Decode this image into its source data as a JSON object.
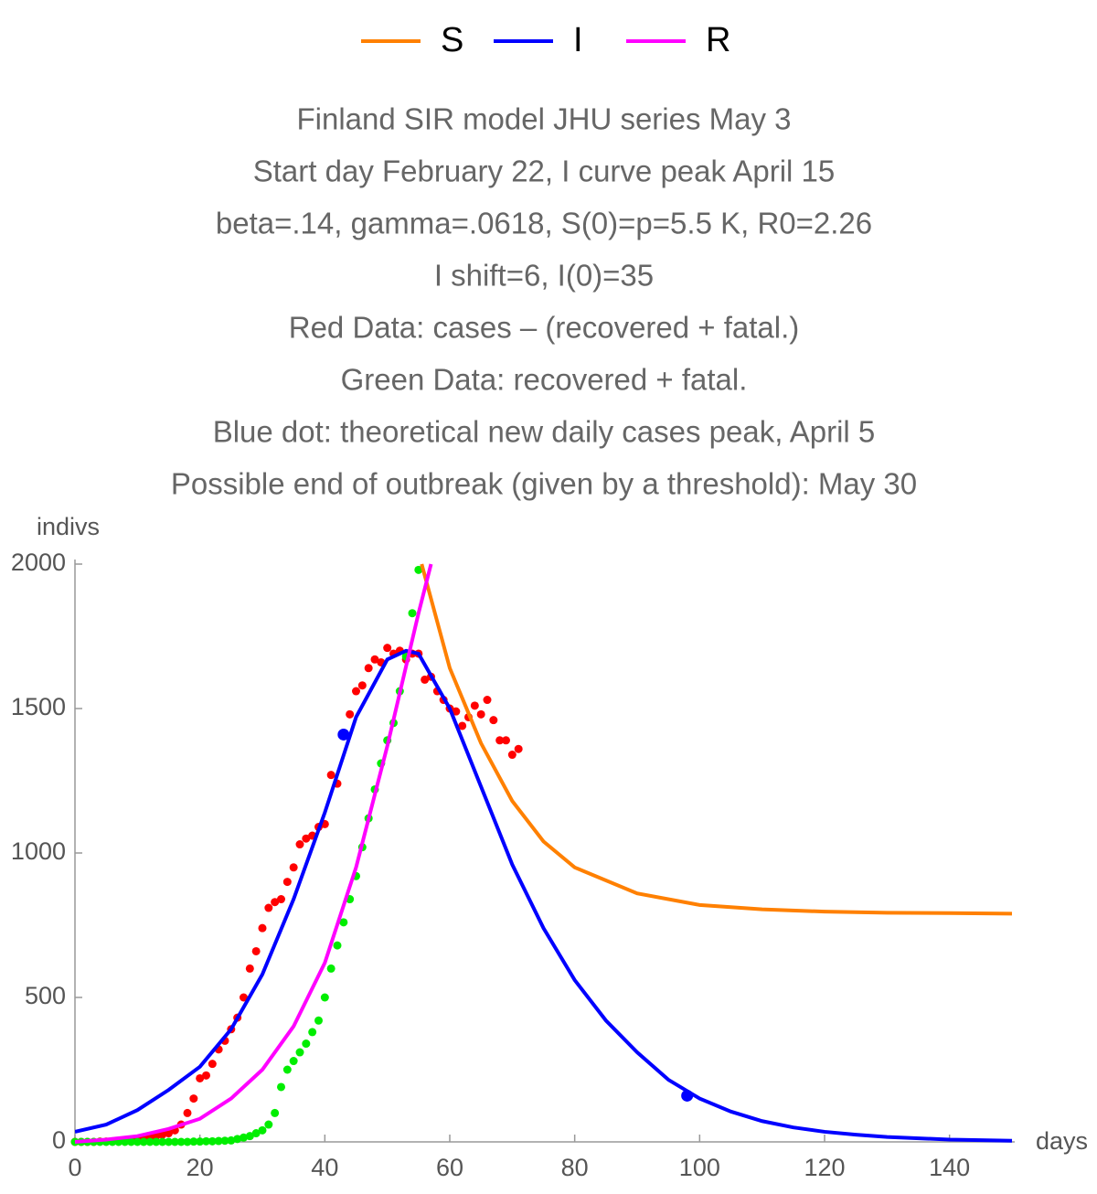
{
  "chart_data": {
    "type": "line",
    "title": [
      "Finland SIR model JHU series May 3",
      "Start day February 22, I curve peak April 15",
      "beta=.14, gamma=.0618, S(0)=p=5.5 K, R0=2.26",
      "I shift=6, I(0)=35",
      "Red Data: cases – (recovered + fatal.)",
      "Green Data: recovered + fatal.",
      "Blue dot: theoretical new daily cases peak, April 5",
      "Possible end of outbreak (given by a threshold): May 30"
    ],
    "y_label": "indivs",
    "x_label": "days",
    "xlim": [
      0,
      150
    ],
    "ylim": [
      0,
      2000
    ],
    "xticks": [
      0,
      20,
      40,
      60,
      80,
      100,
      120,
      140
    ],
    "yticks": [
      0,
      500,
      1000,
      1500,
      2000
    ],
    "legend": "top",
    "series": [
      {
        "name": "S",
        "type": "line",
        "color": "#ff8000",
        "x": [
          55.5,
          60,
          65,
          70,
          75,
          80,
          90,
          100,
          110,
          120,
          130,
          140,
          150
        ],
        "values": [
          2000,
          1640,
          1380,
          1180,
          1040,
          950,
          860,
          820,
          805,
          797,
          793,
          792,
          790
        ]
      },
      {
        "name": "I",
        "type": "line",
        "color": "#0000ff",
        "x": [
          0,
          5,
          10,
          15,
          20,
          25,
          30,
          35,
          40,
          45,
          50,
          53,
          55,
          60,
          65,
          70,
          75,
          80,
          85,
          90,
          95,
          100,
          105,
          110,
          115,
          120,
          125,
          130,
          140,
          150
        ],
        "values": [
          35,
          60,
          110,
          180,
          260,
          390,
          580,
          840,
          1140,
          1470,
          1670,
          1700,
          1690,
          1500,
          1230,
          960,
          740,
          560,
          420,
          310,
          215,
          150,
          105,
          72,
          50,
          35,
          25,
          17,
          8,
          4
        ]
      },
      {
        "name": "R",
        "type": "line",
        "color": "#ff00ff",
        "x": [
          0,
          5,
          10,
          15,
          20,
          25,
          30,
          35,
          40,
          45,
          50,
          55,
          57
        ],
        "values": [
          0,
          8,
          20,
          45,
          80,
          150,
          250,
          400,
          620,
          950,
          1370,
          1830,
          2000
        ]
      },
      {
        "type": "scatter",
        "color": "#ff0000",
        "x": [
          0,
          1,
          2,
          3,
          4,
          5,
          6,
          7,
          8,
          9,
          10,
          11,
          12,
          13,
          14,
          15,
          16,
          17,
          18,
          19,
          20,
          21,
          22,
          23,
          24,
          25,
          26,
          27,
          28,
          29,
          30,
          31,
          32,
          33,
          34,
          35,
          36,
          37,
          38,
          39,
          40,
          41,
          42,
          43,
          44,
          45,
          46,
          47,
          48,
          49,
          50,
          51,
          52,
          53,
          54,
          55,
          56,
          57,
          58,
          59,
          60,
          61,
          62,
          63,
          64,
          65,
          66,
          67,
          68,
          69,
          70,
          71
        ],
        "values": [
          0,
          0,
          0,
          0,
          1,
          1,
          2,
          3,
          5,
          8,
          10,
          12,
          15,
          20,
          25,
          30,
          40,
          60,
          100,
          150,
          220,
          230,
          270,
          320,
          350,
          390,
          430,
          500,
          600,
          660,
          740,
          810,
          830,
          840,
          900,
          950,
          1030,
          1050,
          1060,
          1090,
          1100,
          1270,
          1240,
          1410,
          1480,
          1560,
          1580,
          1640,
          1670,
          1660,
          1710,
          1690,
          1700,
          1670,
          1690,
          1690,
          1600,
          1610,
          1560,
          1530,
          1500,
          1490,
          1440,
          1470,
          1510,
          1480,
          1530,
          1460,
          1390,
          1390,
          1340,
          1360
        ]
      },
      {
        "type": "scatter",
        "color": "#00ee00",
        "x": [
          0,
          1,
          2,
          3,
          4,
          5,
          6,
          7,
          8,
          9,
          10,
          11,
          12,
          13,
          14,
          15,
          16,
          17,
          18,
          19,
          20,
          21,
          22,
          23,
          24,
          25,
          26,
          27,
          28,
          29,
          30,
          31,
          32,
          33,
          34,
          35,
          36,
          37,
          38,
          39,
          40,
          41,
          42,
          43,
          44,
          45,
          46,
          47,
          48,
          49,
          50,
          51,
          52,
          53,
          54,
          55
        ],
        "values": [
          0,
          0,
          0,
          0,
          0,
          0,
          0,
          0,
          0,
          0,
          0,
          0,
          0,
          0,
          0,
          0,
          0,
          0,
          0,
          1,
          1,
          2,
          2,
          3,
          4,
          5,
          10,
          15,
          20,
          30,
          40,
          60,
          100,
          190,
          250,
          280,
          310,
          340,
          380,
          420,
          500,
          600,
          680,
          760,
          840,
          920,
          1020,
          1120,
          1220,
          1310,
          1390,
          1450,
          1560,
          1680,
          1830,
          1980
        ]
      },
      {
        "type": "scatter",
        "color": "#0000ff",
        "size": "big",
        "x": [
          43,
          98
        ],
        "values": [
          1410,
          160
        ]
      }
    ]
  }
}
